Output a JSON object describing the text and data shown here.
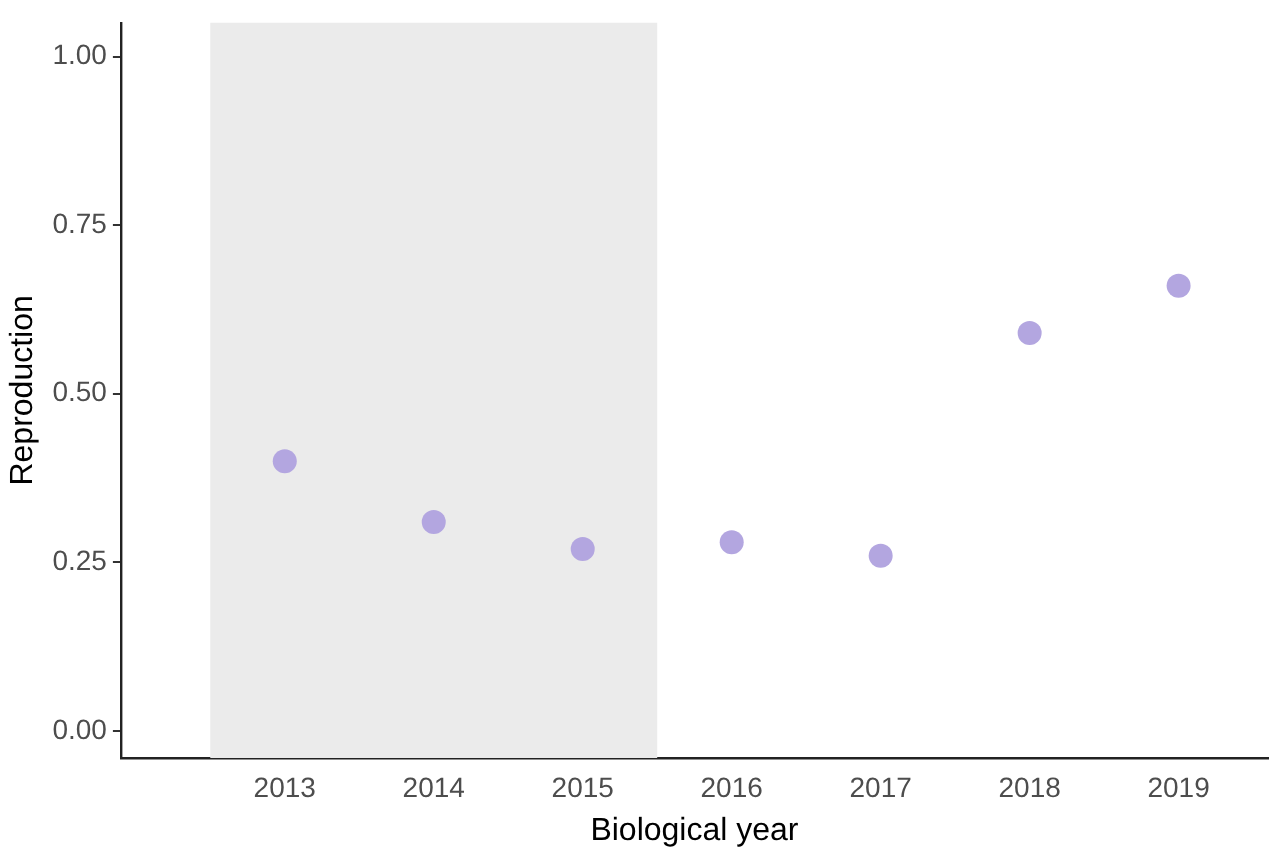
{
  "chart_data": {
    "type": "scatter",
    "xlabel": "Biological year",
    "ylabel": "Reproduction",
    "x": [
      2013,
      2014,
      2015,
      2016,
      2017,
      2018,
      2019
    ],
    "series": [
      {
        "color": "#b3a6e0",
        "values": [
          0.4,
          0.31,
          0.27,
          0.28,
          0.26,
          0.59,
          0.66
        ]
      }
    ],
    "xlim": [
      2011.9,
      2019.6
    ],
    "xticks": [
      2013,
      2014,
      2015,
      2016,
      2017,
      2018,
      2019
    ],
    "ylim": [
      -0.04,
      1.05
    ],
    "yticks": [
      {
        "value": 0,
        "label": "0.00"
      },
      {
        "value": 0.25,
        "label": "0.25"
      },
      {
        "value": 0.5,
        "label": "0.50"
      },
      {
        "value": 0.75,
        "label": "0.75"
      },
      {
        "value": 1,
        "label": "1.00"
      }
    ],
    "bands": [
      {
        "axis": "x",
        "from": 2012.5,
        "to": 2015.5,
        "color": "#ebebeb"
      }
    ],
    "grid": false,
    "legend": false,
    "marker": "circle"
  }
}
